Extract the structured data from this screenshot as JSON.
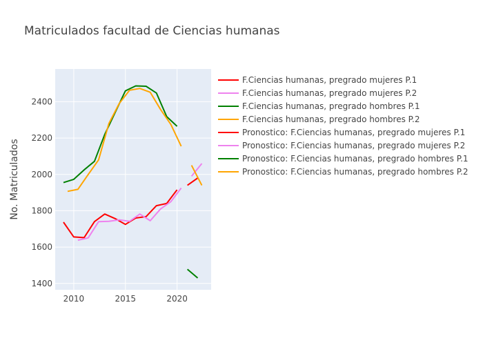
{
  "chart_data": {
    "type": "line",
    "title": "Matriculados facultad de Ciencias humanas",
    "xlabel": "",
    "ylabel": "No. Matriculados",
    "xlim": [
      2008.2,
      2023.3
    ],
    "ylim": [
      1365,
      2580
    ],
    "x_ticks": [
      2010,
      2015,
      2020
    ],
    "y_ticks": [
      1400,
      1600,
      1800,
      2000,
      2200,
      2400
    ],
    "grid": true,
    "legend_position": "right",
    "series": [
      {
        "name": "F.Ciencias humanas, pregrado mujeres P.1",
        "color": "#ff0000",
        "x": [
          2009,
          2010,
          2011,
          2012,
          2013,
          2014,
          2015,
          2016,
          2017,
          2018,
          2019,
          2020
        ],
        "y": [
          1737,
          1656,
          1652,
          1740,
          1782,
          1757,
          1725,
          1760,
          1768,
          1828,
          1840,
          1915
        ]
      },
      {
        "name": "F.Ciencias humanas, pregrado mujeres P.2",
        "color": "#ee82ee",
        "x": [
          2010.4,
          2011.4,
          2012.4,
          2013.4,
          2014.4,
          2015.4,
          2016.4,
          2017.4,
          2018.4,
          2019.4,
          2020.4
        ],
        "y": [
          1638,
          1651,
          1740,
          1742,
          1750,
          1742,
          1782,
          1745,
          1810,
          1850,
          1925
        ]
      },
      {
        "name": "F.Ciencias humanas, pregrado hombres P.1",
        "color": "#008000",
        "x": [
          2009,
          2010,
          2011,
          2012,
          2013,
          2014,
          2015,
          2016,
          2017,
          2018,
          2019,
          2020
        ],
        "y": [
          1955,
          1973,
          2025,
          2072,
          2220,
          2340,
          2460,
          2487,
          2485,
          2448,
          2318,
          2265
        ]
      },
      {
        "name": "F.Ciencias humanas, pregrado hombres P.2",
        "color": "#ffa500",
        "x": [
          2009.4,
          2010.4,
          2011.4,
          2012.4,
          2013.4,
          2014.4,
          2015.4,
          2016.4,
          2017.4,
          2018.4,
          2019.4,
          2020.4
        ],
        "y": [
          1907,
          1918,
          2000,
          2080,
          2280,
          2390,
          2463,
          2473,
          2452,
          2357,
          2275,
          2155
        ]
      },
      {
        "name": "Pronostico: F.Ciencias humanas, pregrado mujeres P.1",
        "color": "#ff0000",
        "x": [
          2021,
          2022
        ],
        "y": [
          1940,
          1980
        ]
      },
      {
        "name": "Pronostico: F.Ciencias humanas, pregrado mujeres P.2",
        "color": "#ee82ee",
        "x": [
          2021.4,
          2022.4
        ],
        "y": [
          1990,
          2060
        ]
      },
      {
        "name": "Pronostico: F.Ciencias humanas, pregrado hombres P.1",
        "color": "#008000",
        "x": [
          2021,
          2022
        ],
        "y": [
          1478,
          1430
        ]
      },
      {
        "name": "Pronostico: F.Ciencias humanas, pregrado hombres P.2",
        "color": "#ffa500",
        "x": [
          2021.4,
          2022.4
        ],
        "y": [
          2050,
          1940
        ]
      }
    ]
  }
}
